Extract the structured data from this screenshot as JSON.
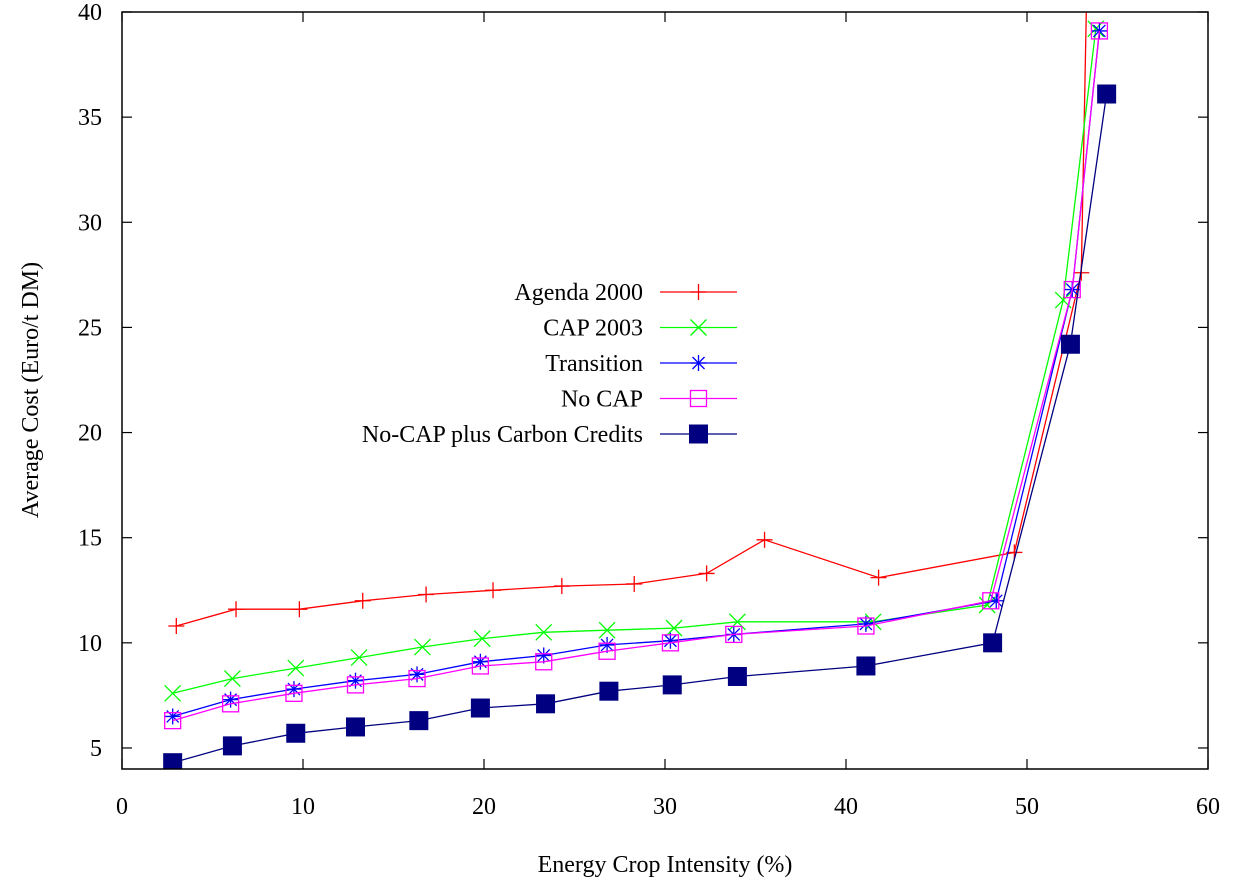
{
  "chart_data": {
    "type": "line",
    "title": "",
    "xlabel": "Energy Crop Intensity (%)",
    "ylabel": "Average Cost (Euro/t DM)",
    "xlim": [
      0,
      60
    ],
    "ylim": [
      4,
      40
    ],
    "xticks": [
      0,
      10,
      20,
      30,
      40,
      50,
      60
    ],
    "yticks": [
      5,
      10,
      15,
      20,
      25,
      30,
      35,
      40
    ],
    "xtick_labels": [
      "0",
      "10",
      "20",
      "30",
      "40",
      "50",
      "60"
    ],
    "ytick_labels": [
      "5",
      "10",
      "15",
      "20",
      "25",
      "30",
      "35",
      "40"
    ],
    "grid": false,
    "legend_position": "center-left",
    "series": [
      {
        "name": "Agenda 2000",
        "color": "#ff0000",
        "marker": "plus",
        "points": [
          [
            3.0,
            10.8
          ],
          [
            6.3,
            11.6
          ],
          [
            9.8,
            11.6
          ],
          [
            13.3,
            12.0
          ],
          [
            16.8,
            12.3
          ],
          [
            20.5,
            12.5
          ],
          [
            24.3,
            12.7
          ],
          [
            28.3,
            12.8
          ],
          [
            32.3,
            13.3
          ],
          [
            35.5,
            14.9
          ],
          [
            41.8,
            13.1
          ],
          [
            49.3,
            14.3
          ],
          [
            53.0,
            27.6
          ],
          [
            53.3,
            41.0
          ]
        ]
      },
      {
        "name": "CAP 2003",
        "color": "#00ff00",
        "marker": "x",
        "points": [
          [
            2.8,
            7.6
          ],
          [
            6.1,
            8.3
          ],
          [
            9.6,
            8.8
          ],
          [
            13.1,
            9.3
          ],
          [
            16.6,
            9.8
          ],
          [
            19.9,
            10.2
          ],
          [
            23.3,
            10.5
          ],
          [
            26.8,
            10.6
          ],
          [
            30.5,
            10.7
          ],
          [
            34.0,
            11.0
          ],
          [
            41.5,
            11.0
          ],
          [
            47.8,
            11.8
          ],
          [
            52.0,
            26.3
          ],
          [
            53.8,
            39.2
          ]
        ]
      },
      {
        "name": "Transition",
        "color": "#0000ff",
        "marker": "asterisk",
        "points": [
          [
            2.8,
            6.5
          ],
          [
            6.0,
            7.3
          ],
          [
            9.5,
            7.8
          ],
          [
            12.9,
            8.2
          ],
          [
            16.3,
            8.5
          ],
          [
            19.8,
            9.1
          ],
          [
            23.3,
            9.4
          ],
          [
            26.8,
            9.9
          ],
          [
            30.3,
            10.1
          ],
          [
            33.8,
            10.4
          ],
          [
            41.1,
            10.9
          ],
          [
            48.3,
            12.0
          ],
          [
            52.5,
            26.8
          ],
          [
            54.0,
            39.1
          ]
        ]
      },
      {
        "name": "No CAP",
        "color": "#ff00ff",
        "marker": "square-open",
        "points": [
          [
            2.8,
            6.3
          ],
          [
            6.0,
            7.1
          ],
          [
            9.5,
            7.6
          ],
          [
            12.9,
            8.0
          ],
          [
            16.3,
            8.3
          ],
          [
            19.8,
            8.9
          ],
          [
            23.3,
            9.1
          ],
          [
            26.8,
            9.6
          ],
          [
            30.3,
            10.0
          ],
          [
            33.8,
            10.4
          ],
          [
            41.1,
            10.8
          ],
          [
            48.0,
            12.0
          ],
          [
            52.5,
            26.8
          ],
          [
            54.0,
            39.1
          ]
        ]
      },
      {
        "name": "No-CAP plus Carbon Credits",
        "color": "#000080",
        "marker": "square-filled",
        "points": [
          [
            2.8,
            4.3
          ],
          [
            6.1,
            5.1
          ],
          [
            9.6,
            5.7
          ],
          [
            12.9,
            6.0
          ],
          [
            16.4,
            6.3
          ],
          [
            19.8,
            6.9
          ],
          [
            23.4,
            7.1
          ],
          [
            26.9,
            7.7
          ],
          [
            30.4,
            8.0
          ],
          [
            34.0,
            8.4
          ],
          [
            41.1,
            8.9
          ],
          [
            48.1,
            10.0
          ],
          [
            52.4,
            24.2
          ],
          [
            54.4,
            36.1
          ]
        ]
      }
    ]
  }
}
